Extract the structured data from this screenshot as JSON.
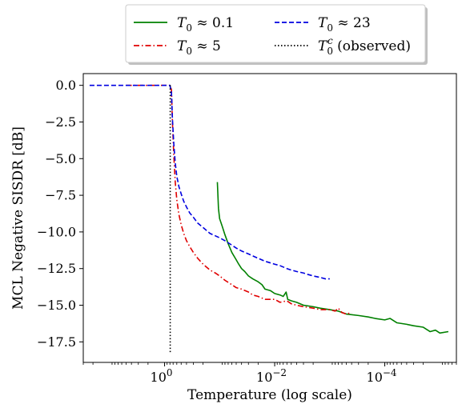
{
  "chart_data": {
    "type": "line",
    "xlabel": "Temperature (log scale)",
    "ylabel": "MCL Negative SISDR [dB]",
    "x_scale": "log",
    "x_reversed": true,
    "xlim": [
      30,
      5e-06
    ],
    "ylim": [
      -18.9,
      0.8
    ],
    "x_ticks": [
      {
        "value": 1,
        "label": "10",
        "exp": "0"
      },
      {
        "value": 0.01,
        "label": "10",
        "exp": "−2"
      },
      {
        "value": 0.0001,
        "label": "10",
        "exp": "−4"
      }
    ],
    "y_ticks": [
      0.0,
      -2.5,
      -5.0,
      -7.5,
      -10.0,
      -12.5,
      -15.0,
      -17.5
    ],
    "y_tick_labels": [
      "0.0",
      "−2.5",
      "−5.0",
      "−7.5",
      "−10.0",
      "−12.5",
      "−15.0",
      "−17.5"
    ],
    "grid": false,
    "legend_position": "top-center, outside plot",
    "series": [
      {
        "name": "T0 ≈ 0.1",
        "legend_base": "T",
        "legend_sub": "0",
        "legend_rest": " ≈ 0.1",
        "color": "#008000",
        "dash": "solid",
        "points": [
          [
            0.11,
            -6.6
          ],
          [
            0.105,
            -8.4
          ],
          [
            0.1,
            -9.1
          ],
          [
            0.09,
            -9.6
          ],
          [
            0.08,
            -10.2
          ],
          [
            0.07,
            -10.8
          ],
          [
            0.06,
            -11.4
          ],
          [
            0.05,
            -11.9
          ],
          [
            0.045,
            -12.2
          ],
          [
            0.04,
            -12.5
          ],
          [
            0.035,
            -12.7
          ],
          [
            0.03,
            -13.0
          ],
          [
            0.025,
            -13.2
          ],
          [
            0.02,
            -13.4
          ],
          [
            0.017,
            -13.6
          ],
          [
            0.015,
            -13.9
          ],
          [
            0.012,
            -14.0
          ],
          [
            0.01,
            -14.2
          ],
          [
            0.008,
            -14.3
          ],
          [
            0.007,
            -14.4
          ],
          [
            0.0062,
            -14.1
          ],
          [
            0.0058,
            -14.6
          ],
          [
            0.005,
            -14.7
          ],
          [
            0.004,
            -14.8
          ],
          [
            0.003,
            -15.0
          ],
          [
            0.002,
            -15.1
          ],
          [
            0.0015,
            -15.2
          ],
          [
            0.001,
            -15.3
          ],
          [
            0.0007,
            -15.4
          ],
          [
            0.0005,
            -15.6
          ],
          [
            0.0003,
            -15.7
          ],
          [
            0.0002,
            -15.8
          ],
          [
            0.00015,
            -15.9
          ],
          [
            0.0001,
            -16.0
          ],
          [
            8e-05,
            -15.9
          ],
          [
            6e-05,
            -16.2
          ],
          [
            4e-05,
            -16.3
          ],
          [
            3e-05,
            -16.4
          ],
          [
            2e-05,
            -16.5
          ],
          [
            1.5e-05,
            -16.8
          ],
          [
            1.2e-05,
            -16.7
          ],
          [
            1e-05,
            -16.9
          ],
          [
            7e-06,
            -16.8
          ]
        ]
      },
      {
        "name": "T0 ≈ 5",
        "legend_base": "T",
        "legend_sub": "0",
        "legend_rest": " ≈ 5",
        "color": "#e00000",
        "dash": "dashdot",
        "points": [
          [
            5,
            0.0
          ],
          [
            1.0,
            0.0
          ],
          [
            0.8,
            0.0
          ],
          [
            0.75,
            -0.3
          ],
          [
            0.72,
            -2.5
          ],
          [
            0.68,
            -4.8
          ],
          [
            0.64,
            -6.6
          ],
          [
            0.6,
            -7.8
          ],
          [
            0.55,
            -8.8
          ],
          [
            0.5,
            -9.5
          ],
          [
            0.45,
            -10.1
          ],
          [
            0.4,
            -10.6
          ],
          [
            0.35,
            -11.0
          ],
          [
            0.3,
            -11.4
          ],
          [
            0.25,
            -11.8
          ],
          [
            0.2,
            -12.2
          ],
          [
            0.15,
            -12.6
          ],
          [
            0.12,
            -12.8
          ],
          [
            0.1,
            -13.0
          ],
          [
            0.08,
            -13.3
          ],
          [
            0.06,
            -13.6
          ],
          [
            0.05,
            -13.8
          ],
          [
            0.04,
            -13.9
          ],
          [
            0.03,
            -14.1
          ],
          [
            0.025,
            -14.3
          ],
          [
            0.02,
            -14.4
          ],
          [
            0.015,
            -14.6
          ],
          [
            0.01,
            -14.6
          ],
          [
            0.008,
            -14.8
          ],
          [
            0.006,
            -14.7
          ],
          [
            0.005,
            -14.9
          ],
          [
            0.004,
            -15.0
          ],
          [
            0.003,
            -15.1
          ],
          [
            0.002,
            -15.2
          ],
          [
            0.0015,
            -15.3
          ],
          [
            0.001,
            -15.3
          ],
          [
            0.0008,
            -15.4
          ],
          [
            0.0007,
            -15.2
          ],
          [
            0.0006,
            -15.5
          ],
          [
            0.0005,
            -15.6
          ],
          [
            0.0004,
            -15.5
          ]
        ]
      },
      {
        "name": "T0 ≈ 23",
        "legend_base": "T",
        "legend_sub": "0",
        "legend_rest": " ≈ 23",
        "color": "#0000e0",
        "dash": "dashed",
        "points": [
          [
            23,
            0.0
          ],
          [
            2.0,
            0.0
          ],
          [
            1.0,
            0.0
          ],
          [
            0.8,
            0.0
          ],
          [
            0.75,
            -0.5
          ],
          [
            0.72,
            -2.3
          ],
          [
            0.68,
            -4.0
          ],
          [
            0.64,
            -5.3
          ],
          [
            0.6,
            -6.2
          ],
          [
            0.55,
            -6.9
          ],
          [
            0.5,
            -7.4
          ],
          [
            0.45,
            -7.9
          ],
          [
            0.4,
            -8.3
          ],
          [
            0.35,
            -8.7
          ],
          [
            0.3,
            -9.0
          ],
          [
            0.25,
            -9.4
          ],
          [
            0.2,
            -9.7
          ],
          [
            0.15,
            -10.1
          ],
          [
            0.1,
            -10.4
          ],
          [
            0.08,
            -10.6
          ],
          [
            0.06,
            -10.9
          ],
          [
            0.05,
            -11.1
          ],
          [
            0.04,
            -11.3
          ],
          [
            0.03,
            -11.5
          ],
          [
            0.02,
            -11.8
          ],
          [
            0.015,
            -12.0
          ],
          [
            0.01,
            -12.2
          ],
          [
            0.008,
            -12.3
          ],
          [
            0.006,
            -12.5
          ],
          [
            0.005,
            -12.6
          ],
          [
            0.004,
            -12.7
          ],
          [
            0.003,
            -12.8
          ],
          [
            0.0025,
            -12.9
          ],
          [
            0.002,
            -13.0
          ],
          [
            0.0015,
            -13.1
          ],
          [
            0.0012,
            -13.2
          ],
          [
            0.001,
            -13.2
          ]
        ]
      },
      {
        "name": "T0c (observed)",
        "legend_base": "T",
        "legend_sub": "0",
        "legend_sup": "c",
        "legend_rest": " (observed)",
        "color": "#000000",
        "dash": "dotted",
        "points": [
          [
            0.79,
            0.0
          ],
          [
            0.79,
            -18.2
          ]
        ]
      }
    ]
  }
}
